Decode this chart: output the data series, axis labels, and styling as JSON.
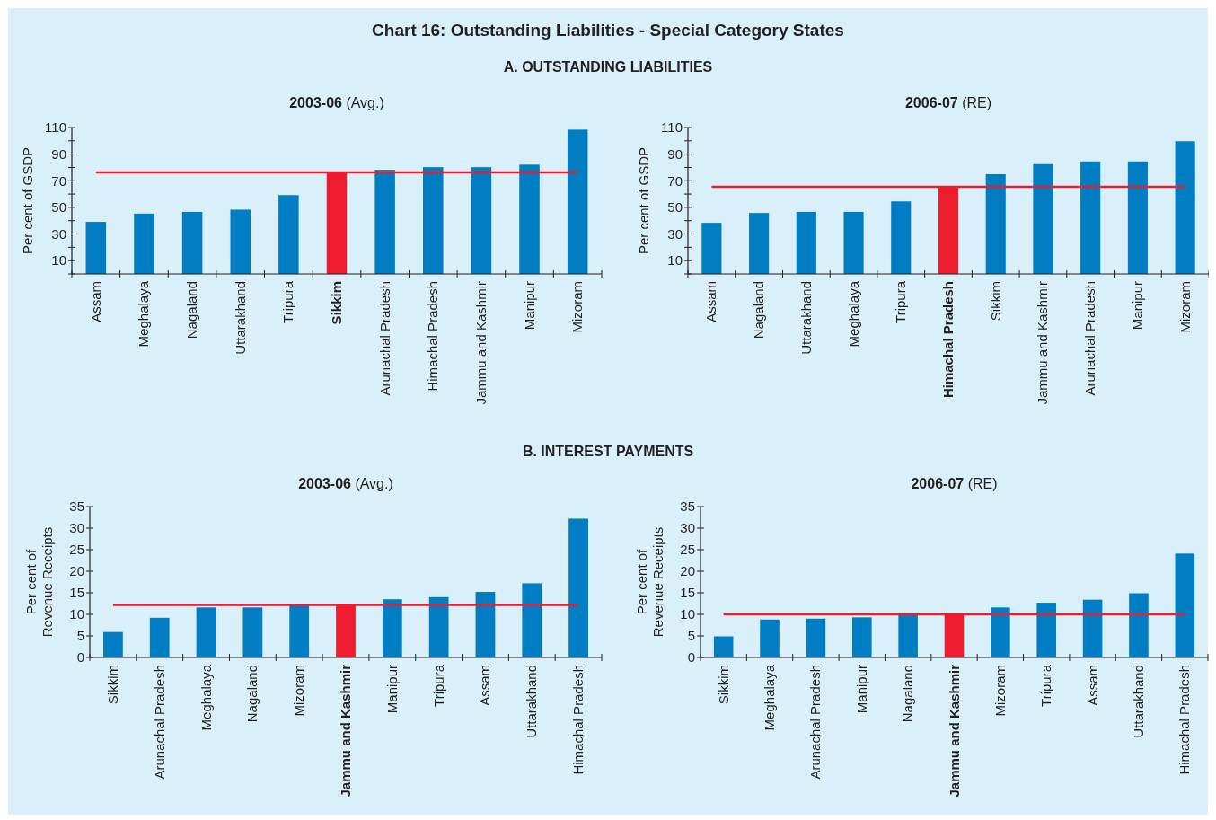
{
  "chart_data": [
    {
      "type": "bar",
      "title": "2003-06 (Avg.)",
      "ylabel": "Per cent of GSDP",
      "annotations": [
        "Chart 16: Outstanding Liabilities - Special Category States",
        "A. OUTSTANDING LIABILITIES"
      ],
      "categories": [
        "Assam",
        "Meghalaya",
        "Nagaland",
        "Uttarakhand",
        "Tripura",
        "Sikkim",
        "Arunachal Pradesh",
        "Himachal Pradesh",
        "Jammu and Kashmir",
        "Manipur",
        "Mizoram"
      ],
      "values": [
        39.1,
        45.3,
        46.6,
        48.3,
        59.2,
        76.3,
        78.2,
        80.2,
        80.2,
        82.1,
        108.4
      ],
      "colors": [
        "#007dc3",
        "#007dc3",
        "#007dc3",
        "#007dc3",
        "#007dc3",
        "#ed1c2e",
        "#007dc3",
        "#007dc3",
        "#007dc3",
        "#007dc3",
        "#007dc3"
      ],
      "ylim": [
        0,
        110
      ],
      "yticks": [
        {
          "value": 0,
          "label": null
        },
        10,
        {
          "value": 20,
          "label": null
        },
        30,
        {
          "value": 40,
          "label": null
        },
        50,
        {
          "value": 60,
          "label": null
        },
        70,
        {
          "value": 80,
          "label": null
        },
        90,
        {
          "value": 100,
          "label": null
        },
        110
      ],
      "ref_lines": [
        {
          "axis": "y",
          "value": 76.3,
          "color": "#ed1c2e"
        }
      ],
      "grid": false
    },
    {
      "type": "bar",
      "title": "2006-07 (RE)",
      "ylabel": "Per cent of GSDP",
      "categories": [
        "Assam",
        "Nagaland",
        "Uttarakhand",
        "Meghalaya",
        "Tripura",
        "Himachal Pradesh",
        "Sikkim",
        "Jammu and Kashmir",
        "Arunachal Pradesh",
        "Manipur",
        "Mizoram"
      ],
      "values": [
        38.4,
        45.8,
        46.6,
        46.6,
        54.5,
        65.5,
        74.9,
        82.5,
        84.5,
        84.5,
        99.7
      ],
      "colors": [
        "#007dc3",
        "#007dc3",
        "#007dc3",
        "#007dc3",
        "#007dc3",
        "#ed1c2e",
        "#007dc3",
        "#007dc3",
        "#007dc3",
        "#007dc3",
        "#007dc3"
      ],
      "ylim": [
        0,
        110
      ],
      "yticks": [
        {
          "value": 0,
          "label": null
        },
        10,
        {
          "value": 20,
          "label": null
        },
        30,
        {
          "value": 40,
          "label": null
        },
        50,
        {
          "value": 60,
          "label": null
        },
        70,
        {
          "value": 80,
          "label": null
        },
        90,
        {
          "value": 100,
          "label": null
        },
        110
      ],
      "ref_lines": [
        {
          "axis": "y",
          "value": 65.5,
          "color": "#ed1c2e"
        }
      ],
      "grid": false
    },
    {
      "type": "bar",
      "title": "2003-06 (Avg.)",
      "ylabel": "Per cent of\nRevenue Receipts",
      "annotations": [
        "B. INTEREST PAYMENTS"
      ],
      "categories": [
        "Sikkim",
        "Arunachal Pradesh",
        "Meghalaya",
        "Nagaland",
        "Mizoram",
        "Jammu and Kashmir",
        "Manipur",
        "Tripura",
        "Assam",
        "Uttarakhand",
        "Himachal Pradesh"
      ],
      "values": [
        5.9,
        9.2,
        11.6,
        11.6,
        12.2,
        12.2,
        13.5,
        14.0,
        15.2,
        17.2,
        32.2
      ],
      "colors": [
        "#007dc3",
        "#007dc3",
        "#007dc3",
        "#007dc3",
        "#007dc3",
        "#ed1c2e",
        "#007dc3",
        "#007dc3",
        "#007dc3",
        "#007dc3",
        "#007dc3"
      ],
      "ylim": [
        0,
        35
      ],
      "yticks": [
        0,
        5,
        10,
        15,
        20,
        25,
        30,
        35
      ],
      "ref_lines": [
        {
          "axis": "y",
          "value": 12.2,
          "color": "#ed1c2e"
        }
      ],
      "grid": false
    },
    {
      "type": "bar",
      "title": "2006-07 (RE)",
      "ylabel": "Per cent of\nRevenue Receipts",
      "categories": [
        "Sikkim",
        "Meghalaya",
        "Arunachal Pradesh",
        "Manipur",
        "Nagaland",
        "Jammu and Kashmir",
        "Mizoram",
        "Tripura",
        "Assam",
        "Uttarakhand",
        "Himachal Pradesh"
      ],
      "values": [
        4.9,
        8.8,
        9.0,
        9.3,
        10.0,
        10.0,
        11.6,
        12.7,
        13.4,
        14.9,
        24.1
      ],
      "colors": [
        "#007dc3",
        "#007dc3",
        "#007dc3",
        "#007dc3",
        "#007dc3",
        "#ed1c2e",
        "#007dc3",
        "#007dc3",
        "#007dc3",
        "#007dc3",
        "#007dc3"
      ],
      "ylim": [
        0,
        35
      ],
      "yticks": [
        0,
        5,
        10,
        15,
        20,
        25,
        30,
        35
      ],
      "ref_lines": [
        {
          "axis": "y",
          "value": 10.0,
          "color": "#ed1c2e"
        }
      ],
      "grid": false
    }
  ]
}
